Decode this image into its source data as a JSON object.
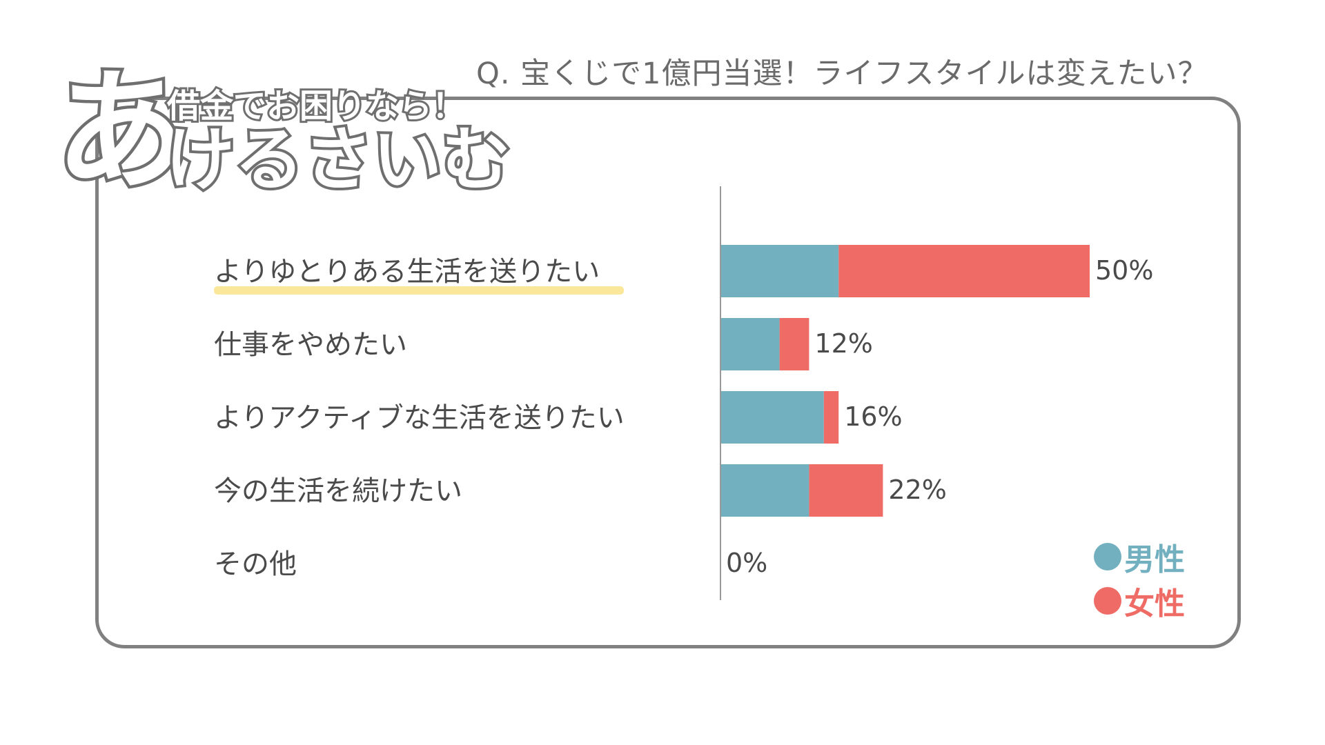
{
  "question": "Q. 宝くじで1億円当選！ライフスタイルは変えたい？",
  "logo": {
    "big": "あ",
    "top": "借金でお困りなら！",
    "bottom": "けるさいむ"
  },
  "chart_data": {
    "type": "bar",
    "orientation": "horizontal",
    "stacked": true,
    "categories": [
      "よりゆとりある生活を送りたい",
      "仕事をやめたい",
      "よりアクティブな生活を送りたい",
      "今の生活を続けたい",
      "その他"
    ],
    "series": [
      {
        "name": "男性",
        "values": [
          16,
          8,
          14,
          12,
          0
        ],
        "color": "#72b0c0"
      },
      {
        "name": "女性",
        "values": [
          34,
          4,
          2,
          10,
          0
        ],
        "color": "#ee6b66"
      }
    ],
    "totals": [
      "50%",
      "12%",
      "16%",
      "22%",
      "0%"
    ],
    "highlight_category": 0,
    "highlight_color": "#fbe79a",
    "xlim": [
      0,
      60
    ],
    "legend_position": "bottom-right"
  }
}
